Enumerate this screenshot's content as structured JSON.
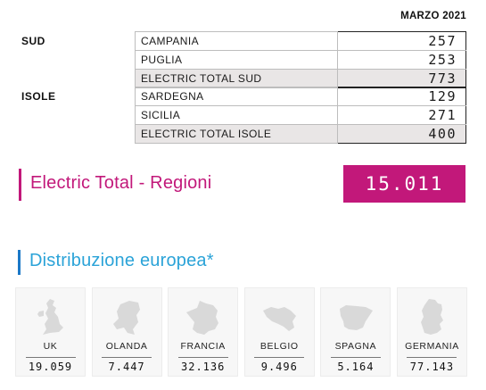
{
  "header": {
    "period": "MARZO 2021"
  },
  "groups": [
    {
      "label": "SUD",
      "rows": [
        {
          "name": "CAMPANIA",
          "value": "257"
        },
        {
          "name": "PUGLIA",
          "value": "253"
        }
      ],
      "total": {
        "name": "ELECTRIC TOTAL SUD",
        "value": "773"
      }
    },
    {
      "label": "ISOLE",
      "rows": [
        {
          "name": "SARDEGNA",
          "value": "129"
        },
        {
          "name": "SICILIA",
          "value": "271"
        }
      ],
      "total": {
        "name": "ELECTRIC TOTAL ISOLE",
        "value": "400"
      }
    }
  ],
  "regioni": {
    "title": "Electric Total - Regioni",
    "value": "15.011"
  },
  "europe": {
    "title": "Distribuzione europea*",
    "countries": [
      {
        "name": "UK",
        "value": "19.059",
        "icon": "uk-map-icon"
      },
      {
        "name": "OLANDA",
        "value": "7.447",
        "icon": "netherlands-map-icon"
      },
      {
        "name": "FRANCIA",
        "value": "32.136",
        "icon": "france-map-icon"
      },
      {
        "name": "BELGIO",
        "value": "9.496",
        "icon": "belgium-map-icon"
      },
      {
        "name": "SPAGNA",
        "value": "5.164",
        "icon": "spain-map-icon"
      },
      {
        "name": "GERMANIA",
        "value": "77.143",
        "icon": "germany-map-icon"
      }
    ]
  },
  "colors": {
    "magenta": "#c2187a",
    "blue": "#2ba3d8",
    "total_row": "#e9e6e6"
  }
}
